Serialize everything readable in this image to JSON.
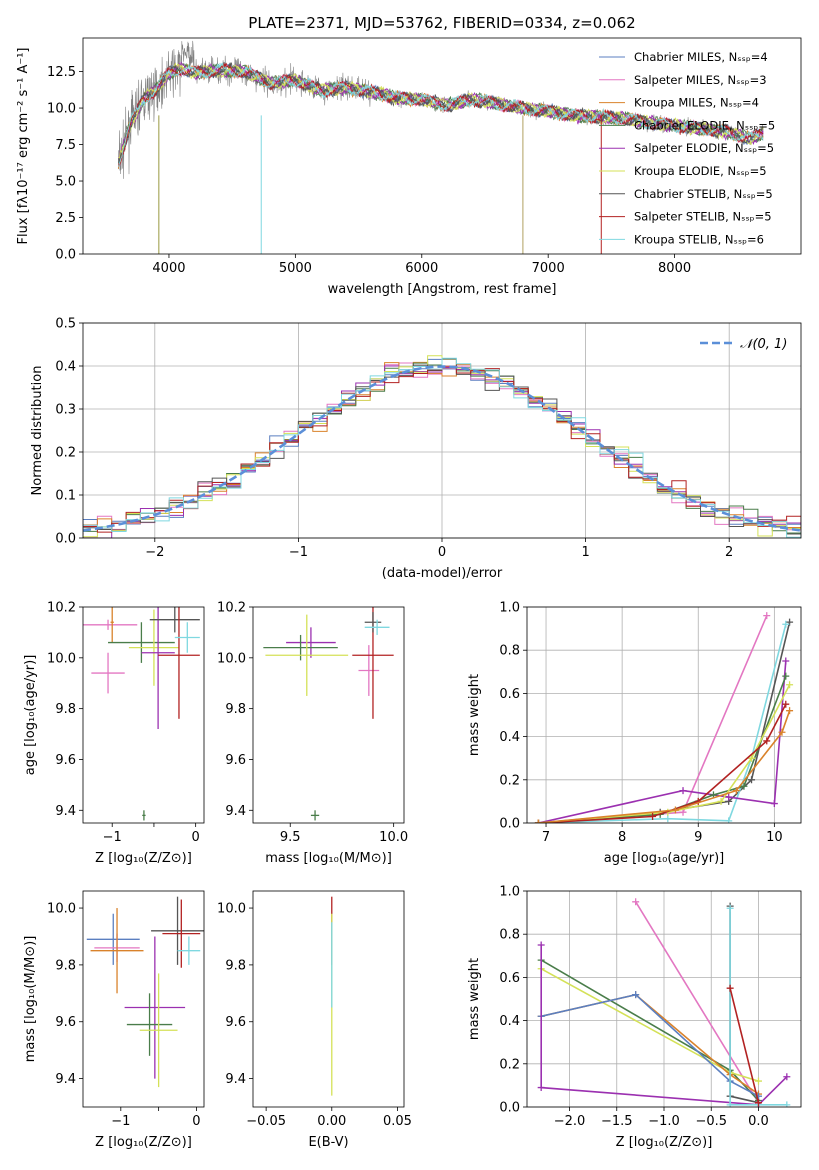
{
  "chart_data": [
    {
      "type": "line",
      "title": "PLATE=2371, MJD=53762, FIBERID=0334, z=0.062",
      "xlabel": "wavelength [Angstrom, rest frame]",
      "ylabel": "Flux [fλ10⁻¹⁷ erg cm⁻² s⁻¹ A⁻¹]",
      "xlim": [
        3320,
        9000
      ],
      "ylim": [
        0,
        14.8
      ],
      "xticks": [
        4000,
        5000,
        6000,
        7000,
        8000
      ],
      "xtick_labels": [
        "4000",
        "5000",
        "6000",
        "7000",
        "8000"
      ],
      "yticks": [
        0,
        2.5,
        5,
        7.5,
        10,
        12.5
      ],
      "ytick_labels": [
        "0.0",
        "2.5",
        "5.0",
        "7.5",
        "10.0",
        "12.5"
      ],
      "legend_position": "top-right",
      "series": [
        {
          "name": "Chabrier MILES, Nₛₛₚ=4",
          "color": "#5b7fc0"
        },
        {
          "name": "Salpeter MILES, Nₛₛₚ=3",
          "color": "#e377c2"
        },
        {
          "name": "Kroupa MILES, Nₛₛₚ=4",
          "color": "#d9822b"
        },
        {
          "name": "Chabrier ELODIE, Nₛₛₚ=5",
          "color": "#4a7d4a"
        },
        {
          "name": "Salpeter ELODIE, Nₛₛₚ=5",
          "color": "#9b30b0"
        },
        {
          "name": "Kroupa ELODIE, Nₛₛₚ=5",
          "color": "#d4e157"
        },
        {
          "name": "Chabrier STELIB, Nₛₛₚ=5",
          "color": "#555555"
        },
        {
          "name": "Salpeter STELIB, Nₛₛₚ=5",
          "color": "#b22222"
        },
        {
          "name": "Kroupa STELIB, Nₛₛₚ=6",
          "color": "#7fd8e0"
        }
      ],
      "data_shape": [
        [
          3600,
          6.2
        ],
        [
          3700,
          9.0
        ],
        [
          3800,
          10.6
        ],
        [
          3900,
          11.3
        ],
        [
          4000,
          12.4
        ],
        [
          4100,
          12.7
        ],
        [
          4200,
          12.4
        ],
        [
          4400,
          12.6
        ],
        [
          4600,
          12.5
        ],
        [
          4800,
          11.7
        ],
        [
          5000,
          11.9
        ],
        [
          5200,
          11.2
        ],
        [
          5400,
          11.4
        ],
        [
          5600,
          11.1
        ],
        [
          5800,
          10.7
        ],
        [
          6000,
          10.6
        ],
        [
          6200,
          10.2
        ],
        [
          6400,
          10.6
        ],
        [
          6600,
          10.3
        ],
        [
          6800,
          10.0
        ],
        [
          7000,
          9.8
        ],
        [
          7200,
          9.5
        ],
        [
          7400,
          9.4
        ],
        [
          7600,
          9.3
        ],
        [
          7800,
          9.0
        ],
        [
          8000,
          8.8
        ],
        [
          8200,
          8.6
        ],
        [
          8400,
          8.4
        ],
        [
          8600,
          7.9
        ],
        [
          8700,
          8.3
        ]
      ]
    },
    {
      "type": "line",
      "xlabel": "(data-model)/error",
      "ylabel": "Normed distribution",
      "xlim": [
        -2.5,
        2.5
      ],
      "ylim": [
        0,
        0.5
      ],
      "xticks": [
        -2,
        -1,
        0,
        1,
        2
      ],
      "xtick_labels": [
        "−2",
        "−1",
        "0",
        "1",
        "2"
      ],
      "yticks": [
        0,
        0.1,
        0.2,
        0.3,
        0.4,
        0.5
      ],
      "ytick_labels": [
        "0.0",
        "0.1",
        "0.2",
        "0.3",
        "0.4",
        "0.5"
      ],
      "legend": "𝒩(0, 1)",
      "legend_position": "top-right",
      "grid": true
    },
    {
      "type": "scatter",
      "xlabel": "Z [log₁₀(Z/Z⊙)]",
      "ylabel": "age  [log₁₀(age/yr)]",
      "xlim": [
        -1.35,
        0.1
      ],
      "ylim": [
        9.35,
        10.2
      ],
      "xticks": [
        -1,
        -0.5,
        0
      ],
      "xtick_labels": [
        "−1",
        "",
        "0"
      ],
      "yticks": [
        9.4,
        9.6,
        9.8,
        10.0,
        10.2
      ],
      "ytick_labels": [
        "9.4",
        "9.6",
        "9.8",
        "10.0",
        "10.2"
      ],
      "points": [
        {
          "x": -1.05,
          "y": 10.13,
          "xerr": 0.35,
          "yerr": 0.02,
          "color": "#e377c2"
        },
        {
          "x": -1.0,
          "y": 10.14,
          "xerr": 0.02,
          "yerr": 0.08,
          "color": "#d9822b"
        },
        {
          "x": -1.05,
          "y": 9.94,
          "xerr": 0.2,
          "yerr": 0.08,
          "color": "#e377c2"
        },
        {
          "x": -0.65,
          "y": 10.06,
          "xerr": 0.4,
          "yerr": 0.08,
          "color": "#4a7d4a"
        },
        {
          "x": -0.62,
          "y": 9.38,
          "xerr": 0.02,
          "yerr": 0.02,
          "color": "#4a7d4a"
        },
        {
          "x": -0.5,
          "y": 10.04,
          "xerr": 0.3,
          "yerr": 0.15,
          "color": "#d4e157"
        },
        {
          "x": -0.45,
          "y": 10.02,
          "xerr": 0.2,
          "yerr": 0.3,
          "color": "#9b30b0"
        },
        {
          "x": -0.25,
          "y": 10.15,
          "xerr": 0.3,
          "yerr": 0.05,
          "color": "#555555"
        },
        {
          "x": -0.2,
          "y": 10.01,
          "xerr": 0.25,
          "yerr": 0.25,
          "color": "#b22222"
        },
        {
          "x": -0.1,
          "y": 10.08,
          "xerr": 0.15,
          "yerr": 0.06,
          "color": "#7fd8e0"
        }
      ]
    },
    {
      "type": "scatter",
      "xlabel": "mass [log₁₀(M/M⊙)]",
      "xlim": [
        9.32,
        10.05
      ],
      "ylim": [
        9.35,
        10.2
      ],
      "xticks": [
        9.5,
        10.0
      ],
      "xtick_labels": [
        "9.5",
        "10.0"
      ],
      "yticks": [
        9.4,
        9.6,
        9.8,
        10.0,
        10.2
      ],
      "ytick_labels": [
        "9.4",
        "9.6",
        "9.8",
        "10.0",
        "10.2"
      ],
      "points": [
        {
          "x": 9.6,
          "y": 10.06,
          "xerr": 0.12,
          "yerr": 0.06,
          "color": "#9b30b0"
        },
        {
          "x": 9.55,
          "y": 10.04,
          "xerr": 0.18,
          "yerr": 0.05,
          "color": "#4a7d4a"
        },
        {
          "x": 9.58,
          "y": 10.01,
          "xerr": 0.2,
          "yerr": 0.16,
          "color": "#d4e157"
        },
        {
          "x": 9.62,
          "y": 9.38,
          "xerr": 0.02,
          "yerr": 0.02,
          "color": "#4a7d4a"
        },
        {
          "x": 9.88,
          "y": 9.95,
          "xerr": 0.05,
          "yerr": 0.1,
          "color": "#e377c2"
        },
        {
          "x": 9.9,
          "y": 10.01,
          "xerr": 0.1,
          "yerr": 0.25,
          "color": "#b22222"
        },
        {
          "x": 9.9,
          "y": 10.14,
          "xerr": 0.04,
          "yerr": 0.04,
          "color": "#555555"
        },
        {
          "x": 9.92,
          "y": 10.12,
          "xerr": 0.06,
          "yerr": 0.03,
          "color": "#7fd8e0"
        }
      ]
    },
    {
      "type": "line",
      "xlabel": "age  [log₁₀(age/yr)]",
      "ylabel": "mass weight",
      "xlim": [
        6.75,
        10.35
      ],
      "ylim": [
        0,
        1
      ],
      "xticks": [
        7,
        8,
        9,
        10
      ],
      "xtick_labels": [
        "7",
        "8",
        "9",
        "10"
      ],
      "yticks": [
        0,
        0.2,
        0.4,
        0.6,
        0.8,
        1.0
      ],
      "ytick_labels": [
        "0.0",
        "0.2",
        "0.4",
        "0.6",
        "0.8",
        "1.0"
      ],
      "grid": true,
      "series": [
        {
          "color": "#e377c2",
          "x": [
            6.9,
            8.8,
            9.9
          ],
          "y": [
            0.0,
            0.05,
            0.96
          ]
        },
        {
          "color": "#555555",
          "x": [
            6.9,
            8.5,
            9.4,
            9.7,
            10.2
          ],
          "y": [
            0.0,
            0.05,
            0.1,
            0.2,
            0.93
          ]
        },
        {
          "color": "#7fd8e0",
          "x": [
            6.9,
            8.6,
            9.4,
            9.7,
            10.15
          ],
          "y": [
            0.0,
            0.02,
            0.01,
            0.3,
            0.92
          ]
        },
        {
          "color": "#9b30b0",
          "x": [
            6.9,
            8.8,
            9.4,
            10.0,
            10.15
          ],
          "y": [
            0.0,
            0.15,
            0.12,
            0.09,
            0.75
          ]
        },
        {
          "color": "#4a7d4a",
          "x": [
            6.9,
            8.5,
            9.2,
            9.6,
            10.15
          ],
          "y": [
            0.0,
            0.04,
            0.13,
            0.17,
            0.68
          ]
        },
        {
          "color": "#d4e157",
          "x": [
            6.9,
            8.6,
            9.3,
            9.7,
            10.2
          ],
          "y": [
            0.0,
            0.05,
            0.1,
            0.3,
            0.64
          ]
        },
        {
          "color": "#b22222",
          "x": [
            6.9,
            8.4,
            9.0,
            9.9,
            10.15
          ],
          "y": [
            0.0,
            0.03,
            0.1,
            0.38,
            0.55
          ]
        },
        {
          "color": "#d9822b",
          "x": [
            6.9,
            8.7,
            9.5,
            10.1,
            10.2
          ],
          "y": [
            0.0,
            0.06,
            0.15,
            0.42,
            0.52
          ]
        }
      ]
    },
    {
      "type": "scatter",
      "xlabel": "Z [log₁₀(Z/Z⊙)]",
      "ylabel": "mass [log₁₀(M/M⊙)]",
      "xlim": [
        -1.5,
        0.1
      ],
      "ylim": [
        9.3,
        10.06
      ],
      "xticks": [
        -1,
        -0.5,
        0
      ],
      "xtick_labels": [
        "−1",
        "",
        "0"
      ],
      "yticks": [
        9.4,
        9.6,
        9.8,
        10.0
      ],
      "ytick_labels": [
        "9.4",
        "9.6",
        "9.8",
        "10.0"
      ],
      "points": [
        {
          "x": -1.1,
          "y": 9.89,
          "xerr": 0.35,
          "yerr": 0.09,
          "color": "#5b7fc0"
        },
        {
          "x": -1.05,
          "y": 9.86,
          "xerr": 0.3,
          "yerr": 0.05,
          "color": "#e377c2"
        },
        {
          "x": -1.05,
          "y": 9.85,
          "xerr": 0.35,
          "yerr": 0.15,
          "color": "#d9822b"
        },
        {
          "x": -0.55,
          "y": 9.65,
          "xerr": 0.4,
          "yerr": 0.25,
          "color": "#9b30b0"
        },
        {
          "x": -0.62,
          "y": 9.59,
          "xerr": 0.3,
          "yerr": 0.11,
          "color": "#4a7d4a"
        },
        {
          "x": -0.5,
          "y": 9.57,
          "xerr": 0.25,
          "yerr": 0.2,
          "color": "#d4e157"
        },
        {
          "x": -0.25,
          "y": 9.92,
          "xerr": 0.35,
          "yerr": 0.12,
          "color": "#555555"
        },
        {
          "x": -0.2,
          "y": 9.91,
          "xerr": 0.25,
          "yerr": 0.12,
          "color": "#b22222"
        },
        {
          "x": -0.1,
          "y": 9.85,
          "xerr": 0.15,
          "yerr": 0.05,
          "color": "#7fd8e0"
        }
      ]
    },
    {
      "type": "scatter",
      "xlabel": "E(B-V)",
      "xlim": [
        -0.06,
        0.055
      ],
      "ylim": [
        9.3,
        10.06
      ],
      "xticks": [
        -0.05,
        0.0,
        0.05
      ],
      "xtick_labels": [
        "−0.05",
        "0.00",
        "0.05"
      ],
      "yticks": [
        9.4,
        9.6,
        9.8,
        10.0
      ],
      "ytick_labels": [
        "9.4",
        "9.6",
        "9.8",
        "10.0"
      ],
      "points": [
        {
          "x": 0.0,
          "y": 9.92,
          "xerr": 0.0,
          "yerr": 0.12,
          "color": "#b22222"
        },
        {
          "x": 0.0,
          "y": 9.66,
          "xerr": 0.0,
          "yerr": 0.32,
          "color": "#d4e157"
        },
        {
          "x": 0.0,
          "y": 9.8,
          "xerr": 0.0,
          "yerr": 0.15,
          "color": "#7fd8e0"
        }
      ]
    },
    {
      "type": "line",
      "xlabel": "Z [log₁₀(Z/Z⊙)]",
      "ylabel": "mass weight",
      "xlim": [
        -2.45,
        0.45
      ],
      "ylim": [
        0,
        1
      ],
      "xticks": [
        -2.0,
        -1.5,
        -1.0,
        -0.5,
        0.0
      ],
      "xtick_labels": [
        "−2.0",
        "−1.5",
        "−1.0",
        "−0.5",
        "0.0"
      ],
      "yticks": [
        0,
        0.2,
        0.4,
        0.6,
        0.8,
        1.0
      ],
      "ytick_labels": [
        "0.0",
        "0.2",
        "0.4",
        "0.6",
        "0.8",
        "1.0"
      ],
      "grid": true,
      "series": [
        {
          "color": "#e377c2",
          "x": [
            -1.3,
            0.0
          ],
          "y": [
            0.95,
            0.02
          ]
        },
        {
          "color": "#4a7d4a",
          "x": [
            -2.3,
            -0.3,
            0.0
          ],
          "y": [
            0.68,
            0.17,
            0.03
          ]
        },
        {
          "color": "#d4e157",
          "x": [
            -2.3,
            -0.3,
            0.0
          ],
          "y": [
            0.64,
            0.16,
            0.12
          ]
        },
        {
          "color": "#d9822b",
          "x": [
            -2.3,
            -1.3,
            -0.3,
            0.0
          ],
          "y": [
            0.42,
            0.52,
            0.15,
            0.06
          ]
        },
        {
          "color": "#5b7fc0",
          "x": [
            -2.3,
            -1.3,
            -0.3,
            0.0
          ],
          "y": [
            0.42,
            0.52,
            0.12,
            0.05
          ]
        },
        {
          "color": "#9b30b0",
          "x": [
            -2.3,
            -2.3,
            0.0,
            0.3
          ],
          "y": [
            0.75,
            0.09,
            0.01,
            0.14
          ]
        },
        {
          "color": "#555555",
          "x": [
            -0.3,
            -0.3,
            0.0
          ],
          "y": [
            0.93,
            0.05,
            0.02
          ]
        },
        {
          "color": "#7fd8e0",
          "x": [
            -0.3,
            -0.3,
            0.3
          ],
          "y": [
            0.92,
            0.01,
            0.01
          ]
        },
        {
          "color": "#b22222",
          "x": [
            -0.3,
            0.0
          ],
          "y": [
            0.55,
            0.02
          ]
        }
      ]
    }
  ]
}
